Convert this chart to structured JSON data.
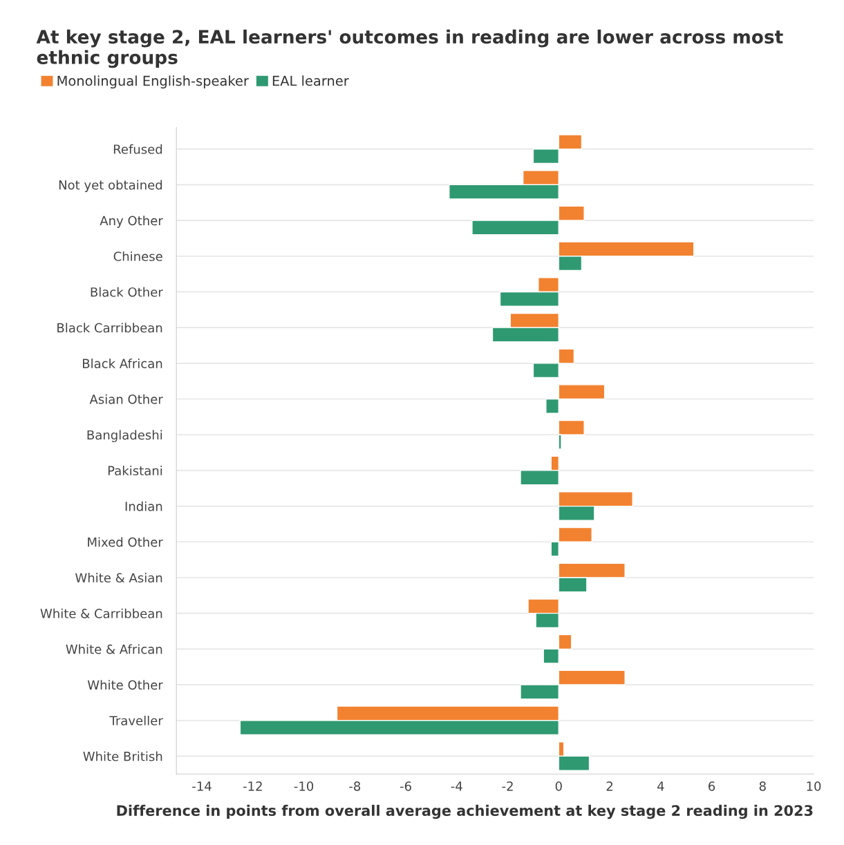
{
  "chart_data": {
    "type": "bar",
    "orientation": "horizontal",
    "title": "At key stage 2, EAL learners' outcomes in reading are lower across most ethnic groups",
    "xlabel": "Difference in points from overall average achievement at key stage 2 reading in 2023",
    "categories": [
      "Refused",
      "Not yet obtained",
      "Any Other",
      "Chinese",
      "Black Other",
      "Black Carribbean",
      "Black African",
      "Asian Other",
      "Bangladeshi",
      "Pakistani",
      "Indian",
      "Mixed Other",
      "White & Asian",
      "White & Carribbean",
      "White & African",
      "White Other",
      "Traveller",
      "White British"
    ],
    "series": [
      {
        "name": "Monolingual English-speaker",
        "color": "#f28230",
        "values": [
          0.9,
          -1.4,
          1.0,
          5.3,
          -0.8,
          -1.9,
          0.6,
          1.8,
          1.0,
          -0.3,
          2.9,
          1.3,
          2.6,
          -1.2,
          0.5,
          2.6,
          -8.7,
          0.2
        ]
      },
      {
        "name": "EAL learner",
        "color": "#2f9a72",
        "values": [
          -1.0,
          -4.3,
          -3.4,
          0.9,
          -2.3,
          -2.6,
          -1.0,
          -0.5,
          0.1,
          -1.5,
          1.4,
          -0.3,
          1.1,
          -0.9,
          -0.6,
          -1.5,
          -12.5,
          1.2
        ]
      }
    ],
    "xlim": [
      -15,
      10
    ],
    "xticks": [
      -14,
      -12,
      -10,
      -8,
      -6,
      -4,
      -2,
      0,
      2,
      4,
      6,
      8,
      10
    ],
    "grid": "y",
    "legend": "top left"
  }
}
